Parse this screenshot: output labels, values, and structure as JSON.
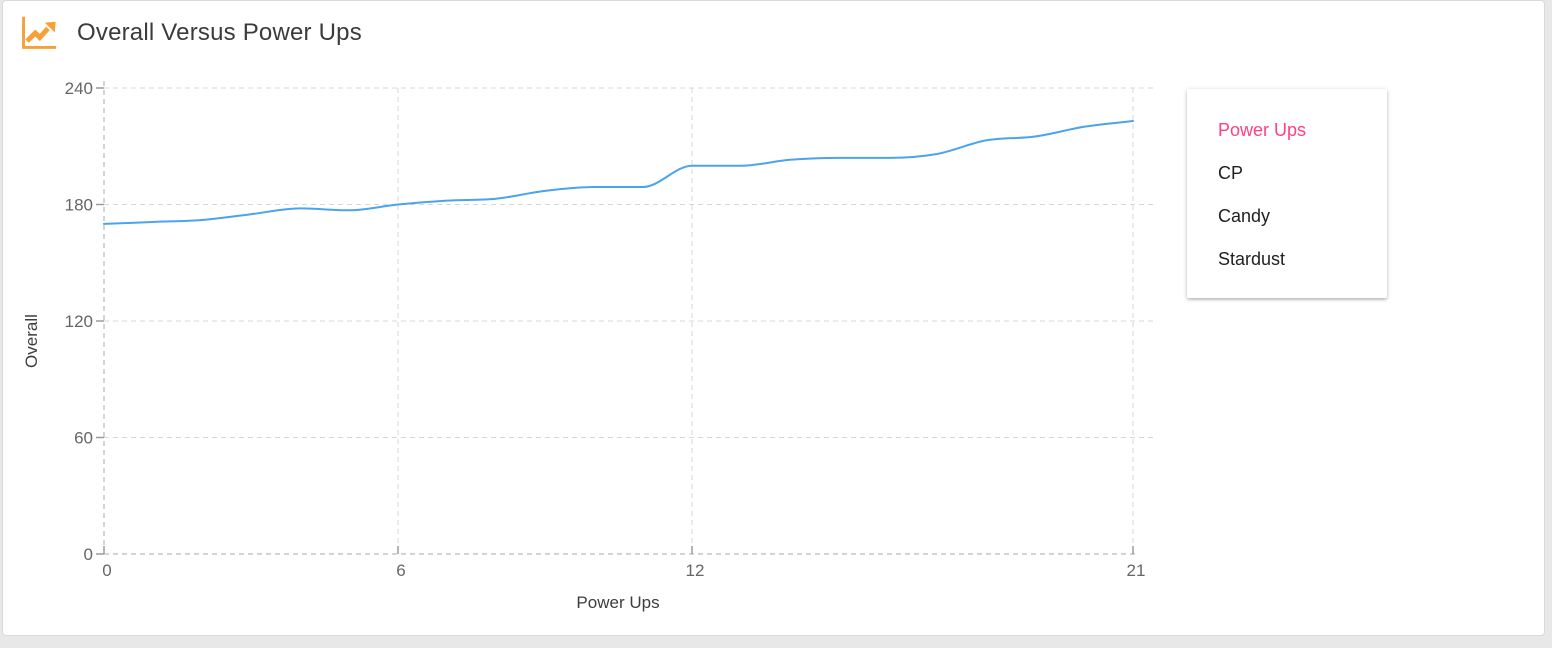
{
  "header": {
    "title": "Overall Versus Power Ups"
  },
  "legend": {
    "items": [
      {
        "label": "Power Ups",
        "active": true,
        "color": "#ff4081"
      },
      {
        "label": "CP",
        "active": false,
        "color": "#212121"
      },
      {
        "label": "Candy",
        "active": false,
        "color": "#212121"
      },
      {
        "label": "Stardust",
        "active": false,
        "color": "#212121"
      }
    ]
  },
  "chart_data": {
    "type": "line",
    "title": "Overall Versus Power Ups",
    "xlabel": "Power Ups",
    "ylabel": "Overall",
    "x": [
      0,
      1,
      2,
      3,
      4,
      5,
      6,
      7,
      8,
      9,
      10,
      11,
      12,
      13,
      14,
      15,
      16,
      17,
      18,
      19,
      20,
      21
    ],
    "series": [
      {
        "name": "Overall",
        "color": "#4aa4ec",
        "values": [
          170,
          171,
          172,
          175,
          178,
          177,
          180,
          182,
          183,
          187,
          189,
          189,
          200,
          200,
          203,
          204,
          204,
          206,
          213,
          215,
          220,
          223
        ]
      }
    ],
    "xlim": [
      0,
      21
    ],
    "ylim": [
      0,
      240
    ],
    "x_ticks": [
      0,
      6,
      12,
      21
    ],
    "y_ticks": [
      0,
      60,
      120,
      180,
      240
    ],
    "grid": "dashed",
    "line_smoothing": "monotone",
    "legend_position": "right"
  },
  "colors": {
    "header_icon_orange": "#f5a138",
    "line_blue": "#4aa4ec",
    "active_legend_pink": "#ff4081",
    "tick_text_gray": "#666666"
  }
}
